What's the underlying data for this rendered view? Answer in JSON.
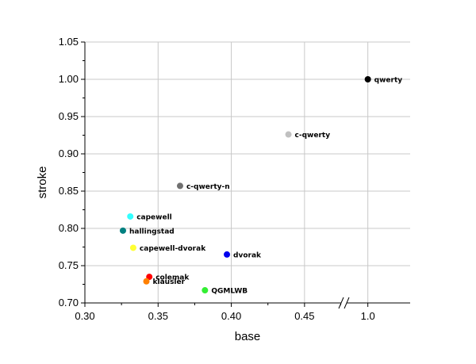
{
  "chart_data": {
    "type": "scatter",
    "xlabel": "base",
    "ylabel": "stroke",
    "x_axis": {
      "broken": true,
      "segments": [
        {
          "range": [
            0.3,
            0.475
          ],
          "ticks": [
            0.3,
            0.35,
            0.4,
            0.45
          ],
          "tick_labels": [
            "0.30",
            "0.35",
            "0.40",
            "0.45"
          ]
        },
        {
          "range": [
            0.975,
            1.05
          ],
          "ticks": [
            1.0
          ],
          "tick_labels": [
            "1.0"
          ]
        }
      ]
    },
    "ylim": [
      0.7,
      1.05
    ],
    "y_ticks": [
      0.7,
      0.75,
      0.8,
      0.85,
      0.9,
      0.95,
      1.0,
      1.05
    ],
    "y_tick_labels": [
      "0.70",
      "0.75",
      "0.80",
      "0.85",
      "0.90",
      "0.95",
      "1.00",
      "1.05"
    ],
    "grid": true,
    "points": [
      {
        "label": "qwerty",
        "x": 1.0,
        "y": 1.0,
        "color": "#000000"
      },
      {
        "label": "c-qwerty",
        "x": 0.439,
        "y": 0.926,
        "color": "#c0c0c0"
      },
      {
        "label": "c-qwerty-n",
        "x": 0.365,
        "y": 0.857,
        "color": "#707070"
      },
      {
        "label": "capewell",
        "x": 0.331,
        "y": 0.816,
        "color": "#33ffff"
      },
      {
        "label": "hallingstad",
        "x": 0.326,
        "y": 0.797,
        "color": "#008080"
      },
      {
        "label": "capewell-dvorak",
        "x": 0.333,
        "y": 0.774,
        "color": "#ffff33"
      },
      {
        "label": "dvorak",
        "x": 0.397,
        "y": 0.765,
        "color": "#0000ee"
      },
      {
        "label": "colemak",
        "x": 0.344,
        "y": 0.735,
        "color": "#ff0000"
      },
      {
        "label": "klausler",
        "x": 0.342,
        "y": 0.729,
        "color": "#ff8000"
      },
      {
        "label": "QGMLWB",
        "x": 0.382,
        "y": 0.717,
        "color": "#33ee33"
      }
    ]
  }
}
